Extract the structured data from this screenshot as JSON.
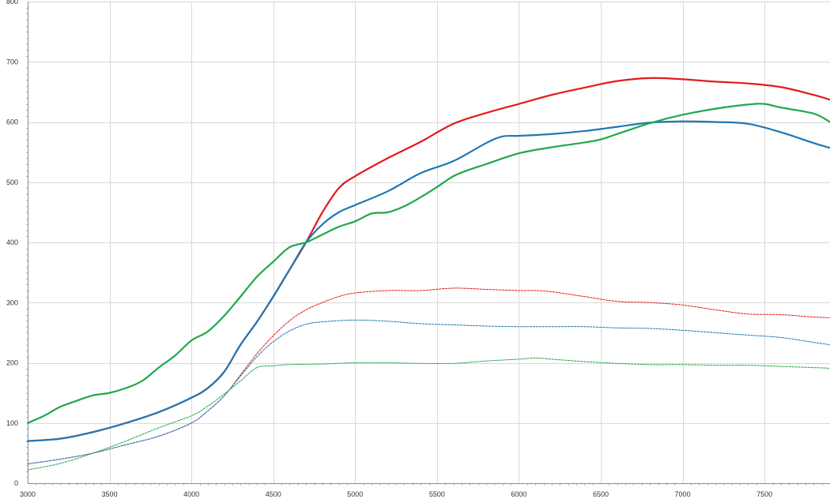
{
  "chart_data": {
    "type": "line",
    "title": "",
    "xlabel": "",
    "ylabel": "",
    "xlim": [
      3000,
      7900
    ],
    "ylim": [
      0,
      800
    ],
    "x_ticks": [
      3000,
      3500,
      4000,
      4500,
      5000,
      5500,
      6000,
      6500,
      7000,
      7500
    ],
    "y_ticks": [
      0,
      100,
      200,
      300,
      400,
      500,
      600,
      700,
      800
    ],
    "grid": true,
    "legend": "none",
    "series": [
      {
        "color": "#e31a1c",
        "style": "solid",
        "points": [
          [
            3000,
            70
          ],
          [
            3200,
            74
          ],
          [
            3400,
            85
          ],
          [
            3600,
            100
          ],
          [
            3800,
            118
          ],
          [
            4000,
            142
          ],
          [
            4100,
            158
          ],
          [
            4200,
            185
          ],
          [
            4300,
            230
          ],
          [
            4400,
            268
          ],
          [
            4500,
            310
          ],
          [
            4600,
            355
          ],
          [
            4700,
            400
          ],
          [
            4800,
            450
          ],
          [
            4900,
            490
          ],
          [
            5000,
            510
          ],
          [
            5200,
            540
          ],
          [
            5400,
            567
          ],
          [
            5600,
            597
          ],
          [
            5800,
            615
          ],
          [
            6000,
            630
          ],
          [
            6200,
            645
          ],
          [
            6400,
            657
          ],
          [
            6600,
            668
          ],
          [
            6800,
            673
          ],
          [
            7000,
            671
          ],
          [
            7200,
            667
          ],
          [
            7400,
            664
          ],
          [
            7600,
            658
          ],
          [
            7800,
            645
          ],
          [
            7900,
            637
          ]
        ]
      },
      {
        "color": "#1f77b4",
        "style": "solid",
        "points": [
          [
            3000,
            70
          ],
          [
            3200,
            74
          ],
          [
            3400,
            85
          ],
          [
            3600,
            100
          ],
          [
            3800,
            118
          ],
          [
            4000,
            142
          ],
          [
            4100,
            158
          ],
          [
            4200,
            185
          ],
          [
            4300,
            230
          ],
          [
            4400,
            268
          ],
          [
            4500,
            310
          ],
          [
            4600,
            355
          ],
          [
            4700,
            400
          ],
          [
            4800,
            430
          ],
          [
            4900,
            450
          ],
          [
            5000,
            462
          ],
          [
            5200,
            485
          ],
          [
            5400,
            515
          ],
          [
            5600,
            535
          ],
          [
            5800,
            565
          ],
          [
            5900,
            576
          ],
          [
            6000,
            577
          ],
          [
            6200,
            580
          ],
          [
            6400,
            585
          ],
          [
            6600,
            592
          ],
          [
            6800,
            599
          ],
          [
            7000,
            601
          ],
          [
            7200,
            600
          ],
          [
            7400,
            597
          ],
          [
            7600,
            583
          ],
          [
            7800,
            565
          ],
          [
            7900,
            557
          ]
        ]
      },
      {
        "color": "#1fa84a",
        "style": "solid",
        "points": [
          [
            3000,
            100
          ],
          [
            3100,
            112
          ],
          [
            3200,
            127
          ],
          [
            3300,
            137
          ],
          [
            3400,
            146
          ],
          [
            3500,
            150
          ],
          [
            3600,
            158
          ],
          [
            3700,
            170
          ],
          [
            3800,
            192
          ],
          [
            3900,
            212
          ],
          [
            4000,
            237
          ],
          [
            4100,
            252
          ],
          [
            4200,
            278
          ],
          [
            4300,
            310
          ],
          [
            4400,
            343
          ],
          [
            4500,
            368
          ],
          [
            4600,
            392
          ],
          [
            4700,
            400
          ],
          [
            4800,
            413
          ],
          [
            4900,
            426
          ],
          [
            5000,
            435
          ],
          [
            5100,
            448
          ],
          [
            5200,
            450
          ],
          [
            5300,
            460
          ],
          [
            5400,
            475
          ],
          [
            5500,
            492
          ],
          [
            5600,
            510
          ],
          [
            5700,
            521
          ],
          [
            5800,
            530
          ],
          [
            6000,
            548
          ],
          [
            6200,
            558
          ],
          [
            6400,
            566
          ],
          [
            6500,
            571
          ],
          [
            6600,
            580
          ],
          [
            6800,
            598
          ],
          [
            7000,
            612
          ],
          [
            7200,
            622
          ],
          [
            7400,
            629
          ],
          [
            7500,
            630
          ],
          [
            7600,
            624
          ],
          [
            7800,
            614
          ],
          [
            7900,
            600
          ]
        ]
      },
      {
        "color": "#e31a1c",
        "style": "dashed",
        "points": [
          [
            3000,
            32
          ],
          [
            3200,
            40
          ],
          [
            3400,
            50
          ],
          [
            3600,
            64
          ],
          [
            3800,
            78
          ],
          [
            4000,
            100
          ],
          [
            4100,
            120
          ],
          [
            4200,
            145
          ],
          [
            4300,
            180
          ],
          [
            4400,
            215
          ],
          [
            4500,
            245
          ],
          [
            4600,
            270
          ],
          [
            4700,
            288
          ],
          [
            4800,
            300
          ],
          [
            4900,
            310
          ],
          [
            5000,
            316
          ],
          [
            5200,
            320
          ],
          [
            5400,
            320
          ],
          [
            5600,
            324
          ],
          [
            5800,
            322
          ],
          [
            6000,
            320
          ],
          [
            6100,
            320
          ],
          [
            6200,
            318
          ],
          [
            6400,
            310
          ],
          [
            6600,
            302
          ],
          [
            6800,
            300
          ],
          [
            7000,
            296
          ],
          [
            7200,
            288
          ],
          [
            7400,
            281
          ],
          [
            7600,
            280
          ],
          [
            7800,
            276
          ],
          [
            7900,
            275
          ]
        ]
      },
      {
        "color": "#1f77b4",
        "style": "dashed",
        "points": [
          [
            3000,
            32
          ],
          [
            3200,
            40
          ],
          [
            3400,
            50
          ],
          [
            3600,
            64
          ],
          [
            3800,
            78
          ],
          [
            4000,
            100
          ],
          [
            4100,
            120
          ],
          [
            4200,
            145
          ],
          [
            4300,
            178
          ],
          [
            4400,
            210
          ],
          [
            4500,
            235
          ],
          [
            4600,
            253
          ],
          [
            4700,
            264
          ],
          [
            4800,
            268
          ],
          [
            5000,
            271
          ],
          [
            5200,
            269
          ],
          [
            5400,
            265
          ],
          [
            5600,
            263
          ],
          [
            5800,
            261
          ],
          [
            6000,
            260
          ],
          [
            6200,
            260
          ],
          [
            6400,
            260
          ],
          [
            6600,
            258
          ],
          [
            6800,
            257
          ],
          [
            7000,
            254
          ],
          [
            7200,
            250
          ],
          [
            7400,
            246
          ],
          [
            7600,
            242
          ],
          [
            7800,
            234
          ],
          [
            7900,
            230
          ]
        ]
      },
      {
        "color": "#1fa84a",
        "style": "dashed",
        "points": [
          [
            3000,
            22
          ],
          [
            3200,
            33
          ],
          [
            3400,
            50
          ],
          [
            3600,
            70
          ],
          [
            3800,
            92
          ],
          [
            4000,
            112
          ],
          [
            4100,
            128
          ],
          [
            4200,
            148
          ],
          [
            4300,
            170
          ],
          [
            4400,
            192
          ],
          [
            4500,
            195
          ],
          [
            4600,
            197
          ],
          [
            4800,
            198
          ],
          [
            5000,
            200
          ],
          [
            5200,
            200
          ],
          [
            5400,
            199
          ],
          [
            5600,
            199
          ],
          [
            5800,
            203
          ],
          [
            6000,
            206
          ],
          [
            6100,
            208
          ],
          [
            6200,
            206
          ],
          [
            6400,
            202
          ],
          [
            6600,
            199
          ],
          [
            6800,
            197
          ],
          [
            7000,
            197
          ],
          [
            7200,
            196
          ],
          [
            7400,
            196
          ],
          [
            7600,
            194
          ],
          [
            7800,
            192
          ],
          [
            7900,
            191
          ]
        ]
      }
    ]
  }
}
